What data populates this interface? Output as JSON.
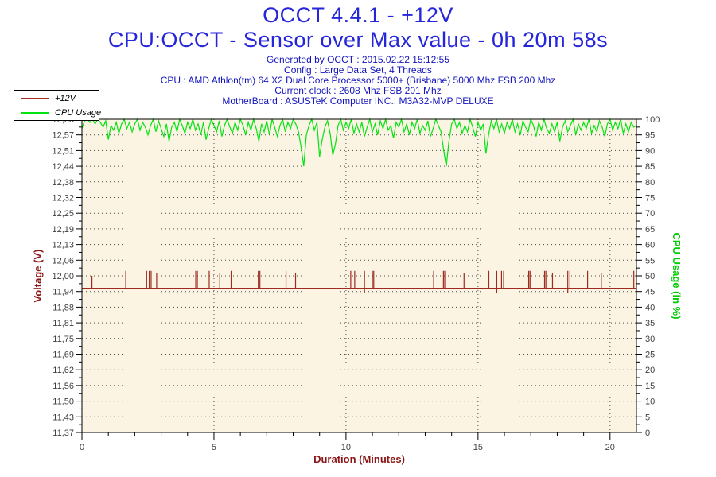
{
  "header": {
    "title": "OCCT 4.4.1 - +12V",
    "subtitle": "CPU:OCCT - Sensor over Max value - 0h 20m 58s",
    "info_lines": [
      "Generated by OCCT : 2015.02.22 15:12:55",
      "Config : Large Data Set, 4 Threads",
      "CPU : AMD Athlon(tm) 64 X2 Dual Core Processor 5000+ (Brisbane) 5000 Mhz FSB 200 Mhz",
      "Current clock : 2608 Mhz FSB 201 Mhz",
      "MotherBoard : ASUSTeK Computer INC.: M3A32-MVP DELUXE"
    ]
  },
  "legend": {
    "items": [
      {
        "label": "+12V",
        "color": "#9e2a22"
      },
      {
        "label": "CPU Usage",
        "color": "#00e512"
      }
    ]
  },
  "colors": {
    "title_blue": "#2525da",
    "info_blue": "#1515bb",
    "voltage_red": "#9e2a22",
    "axis_label_red": "#8b1414",
    "cpu_green": "#00e512",
    "cpu_label_green": "#00cc00",
    "tick_text": "#3f3f3f",
    "plot_background": "#fbf4e3",
    "grid_dot": "#4a4a4a",
    "axis_line": "#000000"
  },
  "chart_data": {
    "type": "line",
    "grid": "dotted horizontal at every major level, vertical at every 5 minutes",
    "legend_position": "top-left box",
    "x_axis": {
      "label": "Duration (Minutes)",
      "min": 0,
      "max": 21,
      "major_ticks": [
        0,
        5,
        10,
        15,
        20
      ],
      "major_tick_labels": [
        "0",
        "5",
        "10",
        "15",
        "20"
      ],
      "minor_tick_step": 1
    },
    "y_axis_left": {
      "label": "Voltage (V)",
      "min": 11.37,
      "max": 12.63,
      "tick_labels_top_to_bottom": [
        "12,63",
        "12,57",
        "12,51",
        "12,44",
        "12,38",
        "12,32",
        "12,25",
        "12,19",
        "12,13",
        "12,06",
        "12,00",
        "11,94",
        "11,88",
        "11,81",
        "11,75",
        "11,69",
        "11,62",
        "11,56",
        "11,50",
        "11,43",
        "11,37"
      ]
    },
    "y_axis_right": {
      "label": "CPU Usage (in %)",
      "min": 0,
      "max": 100,
      "tick_step": 5
    },
    "series": [
      {
        "name": "+12V",
        "axis": "left",
        "color": "#9e2a22",
        "shape": "flat baseline with brief upward spikes",
        "baseline_volts": 11.95,
        "end_minute": 20.97,
        "spikes": [
          [
            0.38,
            12.0
          ],
          [
            1.66,
            12.02
          ],
          [
            2.45,
            12.02
          ],
          [
            2.55,
            12.02
          ],
          [
            2.62,
            12.02
          ],
          [
            2.83,
            12.01
          ],
          [
            4.31,
            12.02
          ],
          [
            4.37,
            12.02
          ],
          [
            4.82,
            12.02
          ],
          [
            5.22,
            12.01
          ],
          [
            5.65,
            12.02
          ],
          [
            6.68,
            12.02
          ],
          [
            6.74,
            12.02
          ],
          [
            7.73,
            12.02
          ],
          [
            8.09,
            12.01
          ],
          [
            10.18,
            12.02
          ],
          [
            10.33,
            12.02
          ],
          [
            10.7,
            12.02,
            11.93
          ],
          [
            11.0,
            12.02
          ],
          [
            11.05,
            12.02
          ],
          [
            13.32,
            12.02
          ],
          [
            13.69,
            12.02
          ],
          [
            13.74,
            12.02
          ],
          [
            14.47,
            12.01
          ],
          [
            15.41,
            12.02
          ],
          [
            15.71,
            12.02,
            11.93
          ],
          [
            15.89,
            12.02
          ],
          [
            15.97,
            12.02
          ],
          [
            16.92,
            12.02
          ],
          [
            16.97,
            12.02
          ],
          [
            17.52,
            12.02
          ],
          [
            17.57,
            12.02
          ],
          [
            17.82,
            12.01
          ],
          [
            18.4,
            12.02,
            11.93
          ],
          [
            18.48,
            12.02
          ],
          [
            19.15,
            12.02
          ],
          [
            19.67,
            12.01
          ],
          [
            20.9,
            12.02
          ]
        ]
      },
      {
        "name": "CPU Usage",
        "axis": "right",
        "color": "#00e512",
        "shape": "noisy band between ~94 and 100 with occasional dips to 85-90",
        "t_start": 0,
        "t_step": 0.1,
        "values": [
          97,
          99.5,
          100,
          99,
          100,
          98.5,
          100,
          99,
          97.5,
          99.5,
          93.5,
          98,
          96.5,
          99,
          95.5,
          98.5,
          100,
          97,
          99,
          96,
          98.5,
          100,
          96.5,
          99,
          97.5,
          95,
          98,
          100,
          96,
          99.5,
          97,
          94.5,
          98.5,
          93,
          97.5,
          99,
          96,
          100,
          98,
          95.5,
          99,
          97,
          100,
          96.5,
          98.5,
          95,
          99,
          93.5,
          97,
          100,
          98,
          96,
          99.5,
          94.5,
          98,
          100,
          97.5,
          95.5,
          99,
          96.5,
          100,
          98,
          95,
          99,
          96.5,
          100,
          97,
          93,
          98.5,
          96,
          99.5,
          95,
          100,
          97.5,
          94.5,
          98,
          100,
          96,
          99,
          97,
          100,
          98.5,
          96,
          91,
          85,
          95,
          98,
          100,
          96.5,
          99,
          88,
          93.5,
          97.5,
          99.5,
          95.5,
          88.5,
          92,
          98,
          100,
          96.5,
          99,
          97,
          100,
          95.5,
          98.5,
          96,
          99,
          94.5,
          97.5,
          100,
          96,
          98.5,
          95,
          99.5,
          97,
          100,
          96.5,
          98,
          94,
          99,
          97.5,
          100,
          96,
          98.5,
          95,
          99,
          97,
          100,
          95.5,
          98,
          96.5,
          99.5,
          94.5,
          97,
          100,
          98,
          96,
          90,
          85,
          93,
          98.5,
          100,
          97,
          99,
          95.5,
          98,
          96,
          100,
          97.5,
          94.5,
          99,
          96.5,
          98.5,
          89,
          95,
          99.5,
          97,
          100,
          96,
          98.5,
          95.5,
          99,
          97,
          100,
          96,
          98.5,
          95,
          99.5,
          97.5,
          96,
          100,
          98,
          94.5,
          99,
          96.5,
          100,
          97,
          95.5,
          98.5,
          96,
          99,
          93,
          97.5,
          99.5,
          96,
          98,
          100,
          95,
          98.5,
          96.5,
          99,
          97,
          100,
          95.5,
          98,
          96,
          99.5,
          97.5,
          94.5,
          98.5,
          100,
          96.5,
          99,
          97,
          100,
          95.5,
          98.5,
          96,
          99,
          97.5,
          98
        ]
      }
    ]
  }
}
